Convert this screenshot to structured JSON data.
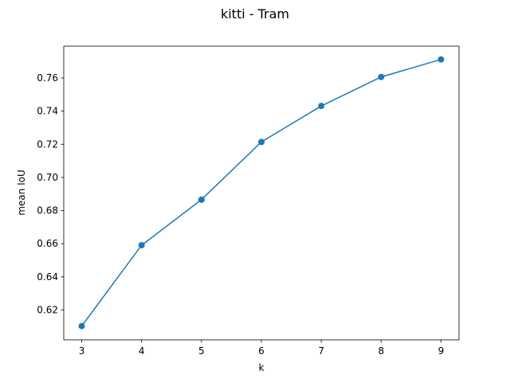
{
  "chart_data": {
    "type": "line",
    "title": "kitti - Tram",
    "xlabel": "k",
    "ylabel": "mean IoU",
    "x": [
      3,
      4,
      5,
      6,
      7,
      8,
      9
    ],
    "series": [
      {
        "values": [
          0.6103,
          0.6591,
          0.6866,
          0.7214,
          0.7431,
          0.7606,
          0.7712
        ],
        "color": "#1f77b4",
        "marker": "circle"
      }
    ],
    "xlim": [
      2.7,
      9.3
    ],
    "ylim": [
      0.602,
      0.7792
    ],
    "x_ticks": [
      3,
      4,
      5,
      6,
      7,
      8,
      9
    ],
    "x_tick_labels": [
      "3",
      "4",
      "5",
      "6",
      "7",
      "8",
      "9"
    ],
    "y_ticks": [
      0.62,
      0.64,
      0.66,
      0.68,
      0.7,
      0.72,
      0.74,
      0.76
    ],
    "y_tick_labels": [
      "0.62",
      "0.64",
      "0.66",
      "0.68",
      "0.70",
      "0.72",
      "0.74",
      "0.76"
    ],
    "grid": false,
    "legend": "none"
  }
}
